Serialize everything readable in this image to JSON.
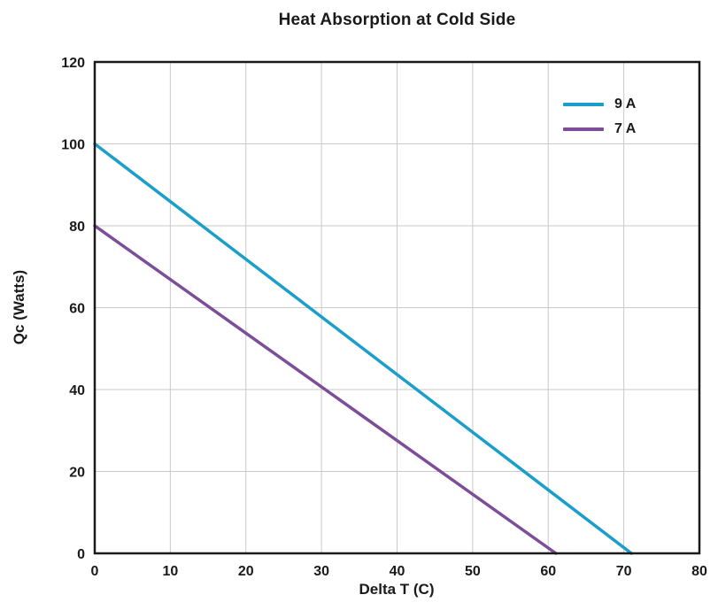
{
  "chart_data": {
    "type": "line",
    "title": "Heat Absorption at Cold Side",
    "xlabel": "Delta T (C)",
    "ylabel": "Qc (Watts)",
    "xlim": [
      0,
      80
    ],
    "ylim": [
      0,
      120
    ],
    "xticks": [
      0,
      10,
      20,
      30,
      40,
      50,
      60,
      70,
      80
    ],
    "yticks": [
      0,
      20,
      40,
      60,
      80,
      100,
      120
    ],
    "grid": true,
    "legend_position": "top-right-inside",
    "axis_color": "#1a1a1a",
    "grid_color": "#c9c9c9",
    "series": [
      {
        "name": "9 A",
        "color": "#1b9fca",
        "points": [
          [
            0,
            100
          ],
          [
            71,
            0
          ]
        ]
      },
      {
        "name": "7 A",
        "color": "#7c4d99",
        "points": [
          [
            0,
            80
          ],
          [
            61,
            0
          ]
        ]
      }
    ]
  }
}
